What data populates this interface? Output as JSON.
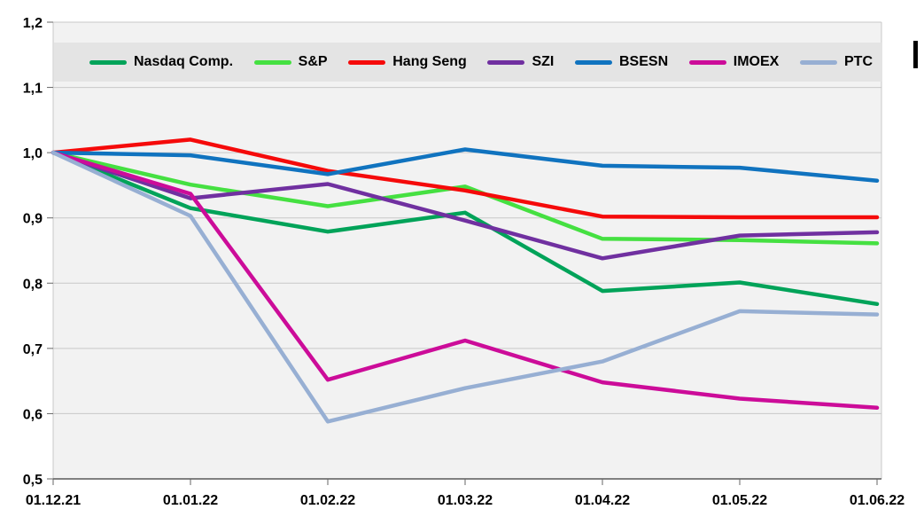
{
  "chart_data": {
    "type": "line",
    "title": "",
    "xlabel": "",
    "ylabel": "",
    "ylim": [
      0.5,
      1.2
    ],
    "grid": true,
    "legend_position": "top",
    "x_labels": [
      "01.12.21",
      "01.01.22",
      "01.02.22",
      "01.03.22",
      "01.04.22",
      "01.05.22",
      "01.06.22"
    ],
    "y_tick_labels": [
      "1,2",
      "1,1",
      "1,0",
      "0,9",
      "0,8",
      "0,7",
      "0,6",
      "0,5"
    ],
    "y_tick_values": [
      1.2,
      1.1,
      1.0,
      0.9,
      0.8,
      0.7,
      0.6,
      0.5
    ],
    "series": [
      {
        "name": "Nasdaq Comp.",
        "color": "#00A359",
        "values": [
          1.0,
          0.915,
          0.879,
          0.908,
          0.788,
          0.801,
          0.768
        ]
      },
      {
        "name": "S&P",
        "color": "#45E041",
        "values": [
          1.0,
          0.951,
          0.918,
          0.948,
          0.868,
          0.866,
          0.861
        ]
      },
      {
        "name": "Hang Seng",
        "color": "#F50A0A",
        "values": [
          1.0,
          1.02,
          0.972,
          0.942,
          0.902,
          0.901,
          0.901
        ]
      },
      {
        "name": "SZI",
        "color": "#7030A0",
        "values": [
          1.0,
          0.93,
          0.952,
          0.896,
          0.838,
          0.873,
          0.878
        ]
      },
      {
        "name": "BSESN",
        "color": "#1073BF",
        "values": [
          1.0,
          0.996,
          0.967,
          1.005,
          0.98,
          0.977,
          0.957
        ]
      },
      {
        "name": "IMOEX",
        "color": "#CC0C99",
        "values": [
          1.0,
          0.937,
          0.652,
          0.712,
          0.648,
          0.623,
          0.609
        ]
      },
      {
        "name": "PTC",
        "color": "#97AFD3",
        "values": [
          1.0,
          0.903,
          0.588,
          0.639,
          0.68,
          0.757,
          0.752
        ]
      }
    ],
    "colors": {
      "plot_fill": "#F2F2F2",
      "legend_fill": "#E4E4E4",
      "gridline": "#C8C8C8",
      "axis_line": "#595959",
      "tick": "#666666",
      "label_text": "#000000",
      "page_background": "#FFFFFF"
    }
  }
}
